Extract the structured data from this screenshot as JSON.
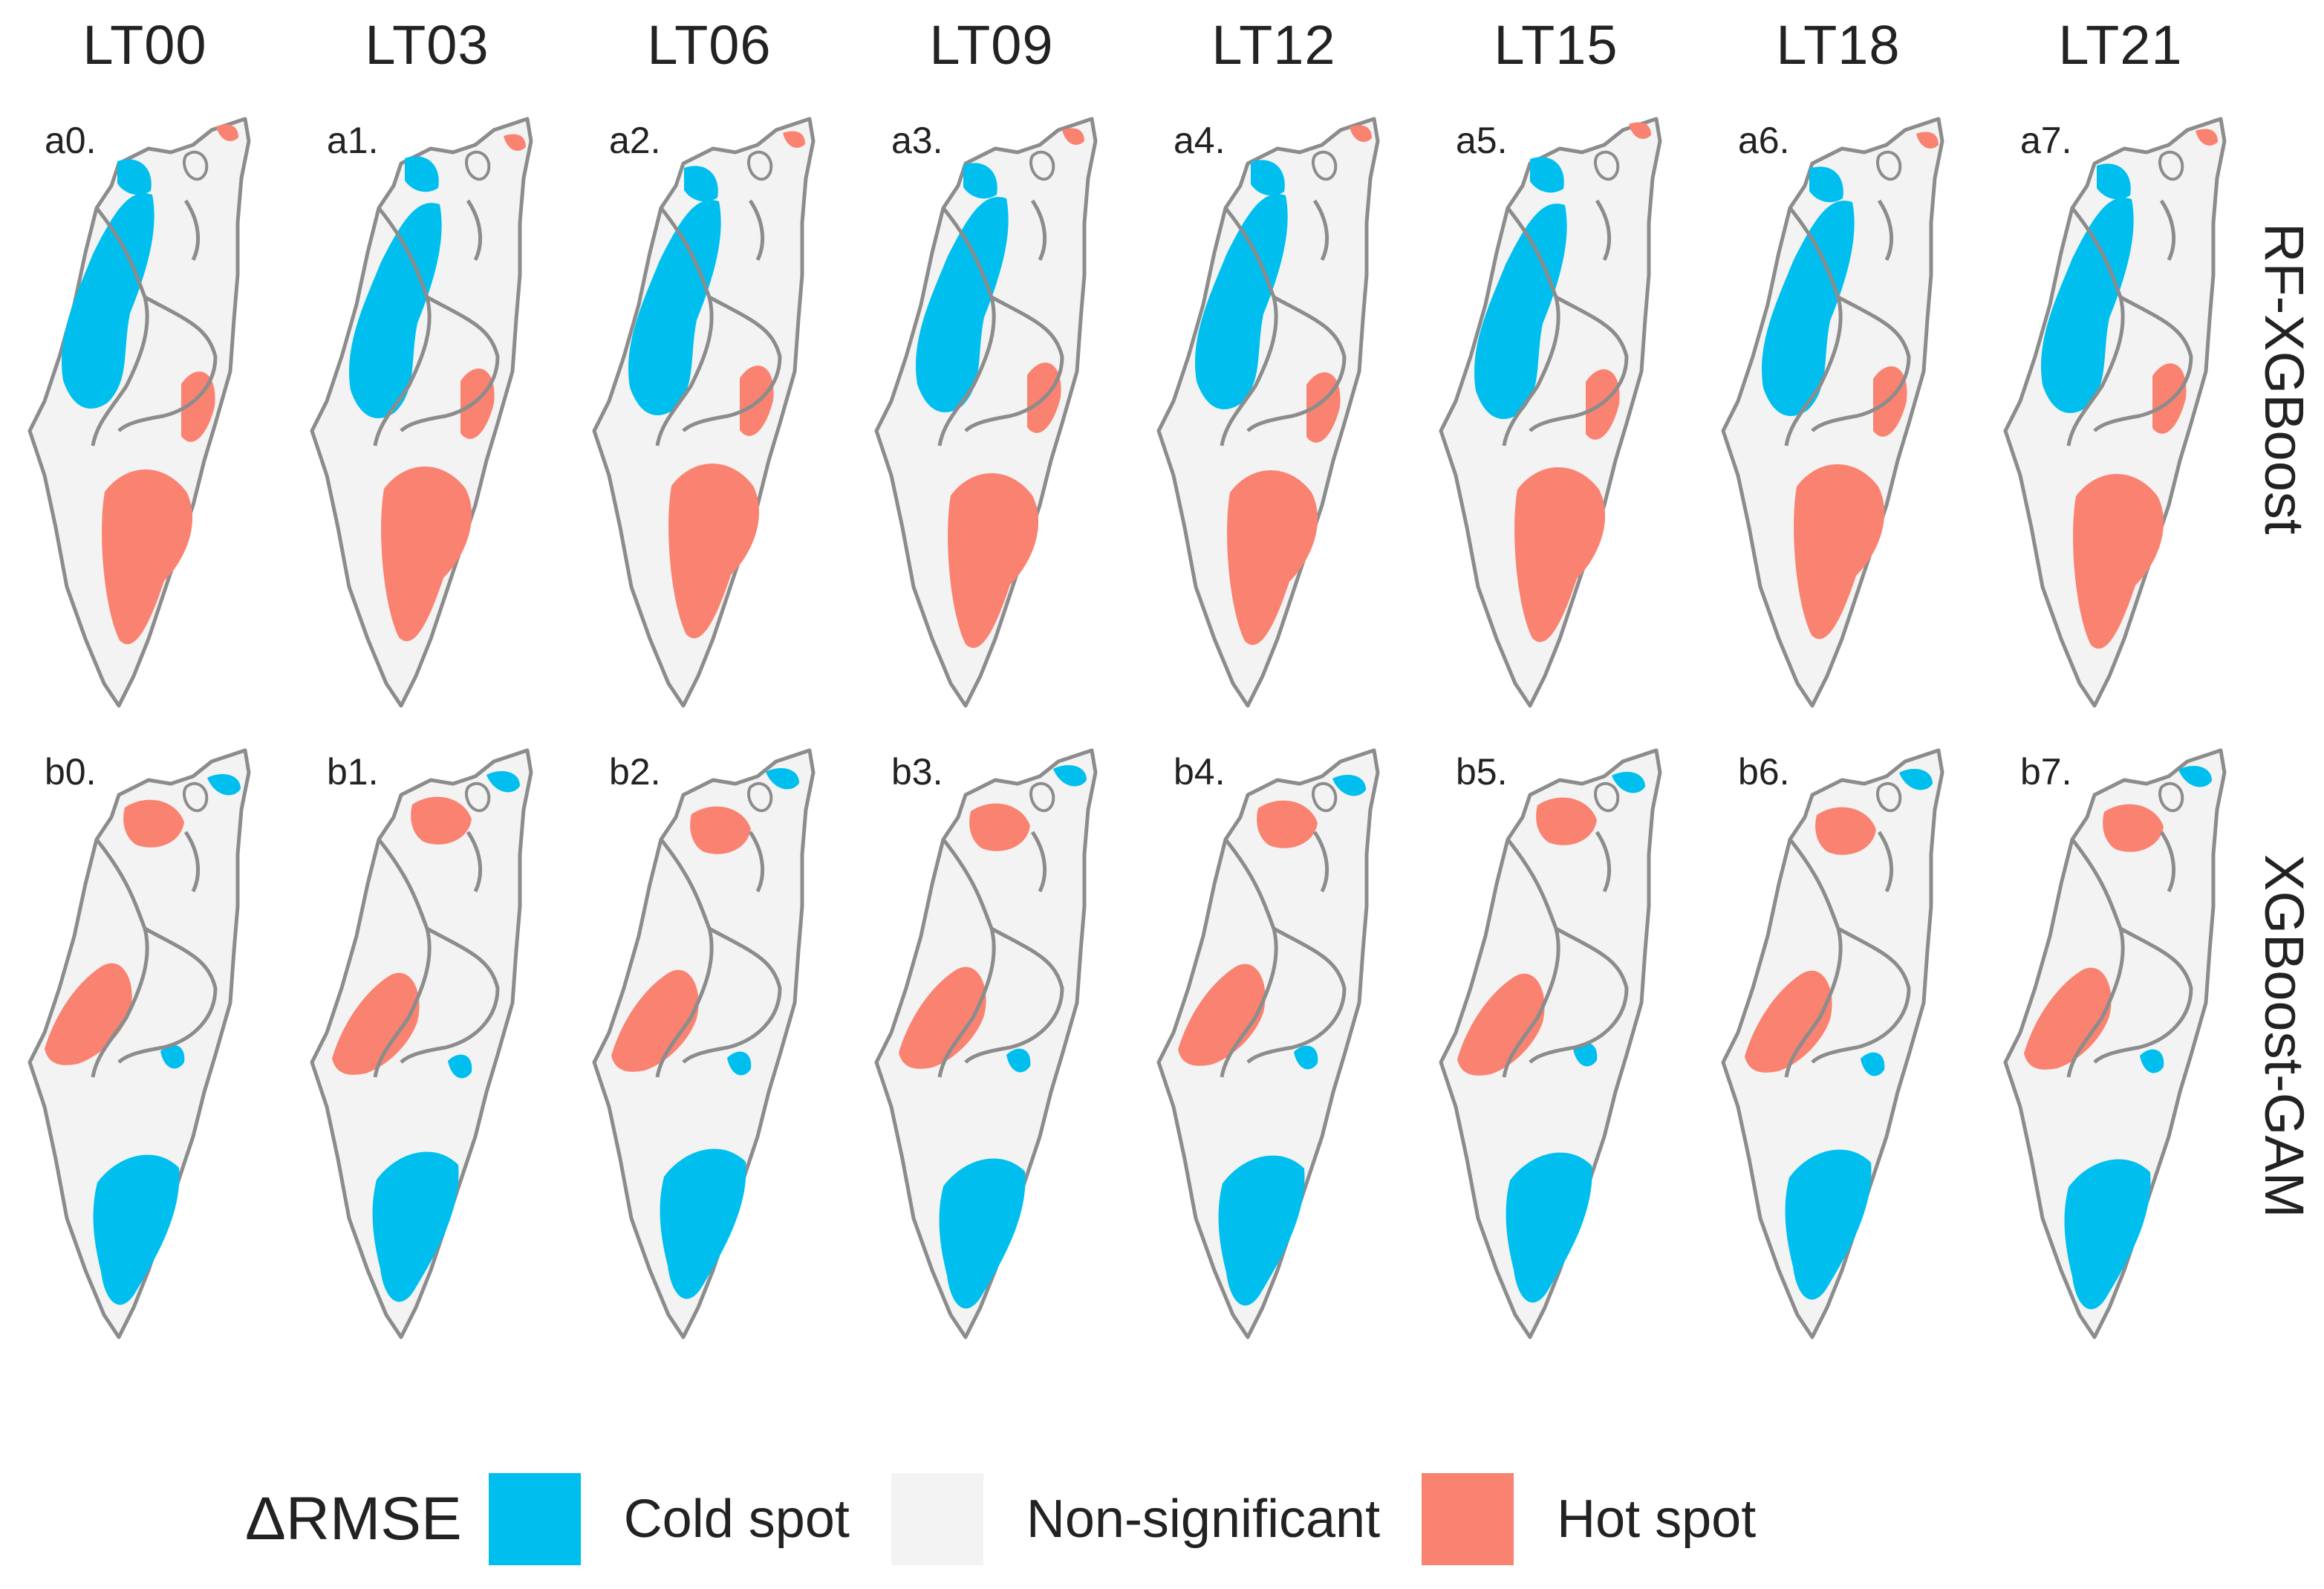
{
  "columns": [
    "LT00",
    "LT03",
    "LT06",
    "LT09",
    "LT12",
    "LT15",
    "LT18",
    "LT21"
  ],
  "rows": [
    {
      "label": "RF-XGBoost",
      "prefix": "a"
    },
    {
      "label": "XGBoost-GAM",
      "prefix": "b"
    }
  ],
  "panel_labels": {
    "a": [
      "a0.",
      "a1.",
      "a2.",
      "a3.",
      "a4.",
      "a5.",
      "a6.",
      "a7."
    ],
    "b": [
      "b0.",
      "b1.",
      "b2.",
      "b3.",
      "b4.",
      "b5.",
      "b6.",
      "b7."
    ]
  },
  "legend": {
    "title": "ΔRMSE",
    "items": [
      {
        "label": "Cold spot",
        "color": "#00BFEF"
      },
      {
        "label": "Non-significant",
        "color": "#F3F3F3"
      },
      {
        "label": "Hot spot",
        "color": "#FA8270"
      }
    ]
  },
  "colors": {
    "cold": "#00BFEF",
    "hot": "#FA8270",
    "land": "#F3F3F3",
    "border": "#8C8C8C"
  }
}
